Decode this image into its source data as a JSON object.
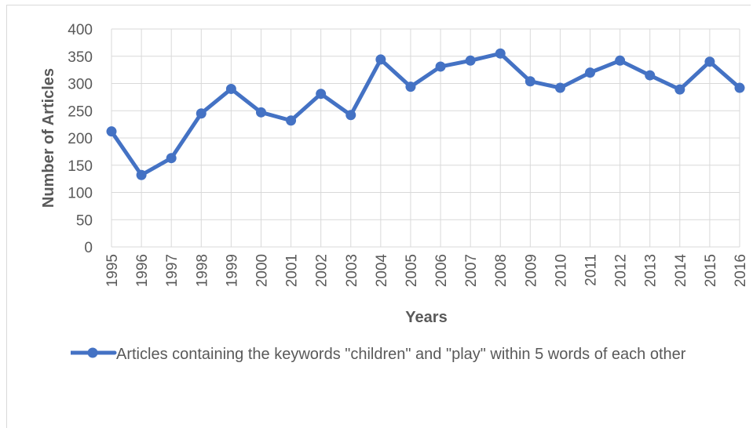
{
  "chart_data": {
    "type": "line",
    "title": "",
    "xlabel": "Years",
    "ylabel": "Number of Articles",
    "ylim": [
      0,
      400
    ],
    "yticks": [
      0,
      50,
      100,
      150,
      200,
      250,
      300,
      350,
      400
    ],
    "grid": true,
    "legend_position": "bottom-left",
    "categories": [
      "1995",
      "1996",
      "1997",
      "1998",
      "1999",
      "2000",
      "2001",
      "2002",
      "2003",
      "2004",
      "2005",
      "2006",
      "2007",
      "2008",
      "2009",
      "2010",
      "2011",
      "2012",
      "2013",
      "2014",
      "2015",
      "2016"
    ],
    "series": [
      {
        "name": "Articles containing the keywords \"children\" and \"play\" within 5 words of each other",
        "color": "#4472c4",
        "values": [
          212,
          132,
          163,
          245,
          290,
          247,
          232,
          281,
          242,
          344,
          294,
          331,
          342,
          355,
          304,
          292,
          320,
          342,
          315,
          289,
          340,
          292
        ]
      }
    ]
  }
}
